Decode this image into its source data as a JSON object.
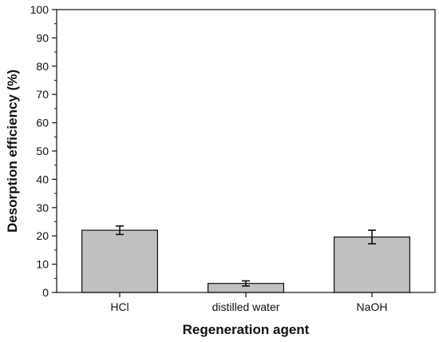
{
  "chart_data": {
    "type": "bar",
    "title": "",
    "xlabel": "Regeneration agent",
    "ylabel": "Desorption efficiency (%)",
    "categories": [
      "HCl",
      "distilled water",
      "NaOH"
    ],
    "values": [
      22.0,
      3.2,
      19.6
    ],
    "errors": [
      1.5,
      0.9,
      2.4
    ],
    "ylim": [
      0,
      100
    ],
    "yticks": [
      0,
      10,
      20,
      30,
      40,
      50,
      60,
      70,
      80,
      90,
      100
    ],
    "grid": false,
    "legend": "none",
    "colors": {
      "bar_fill": "#c0c0c0",
      "bar_stroke": "#111111",
      "axis": "#111111"
    }
  }
}
